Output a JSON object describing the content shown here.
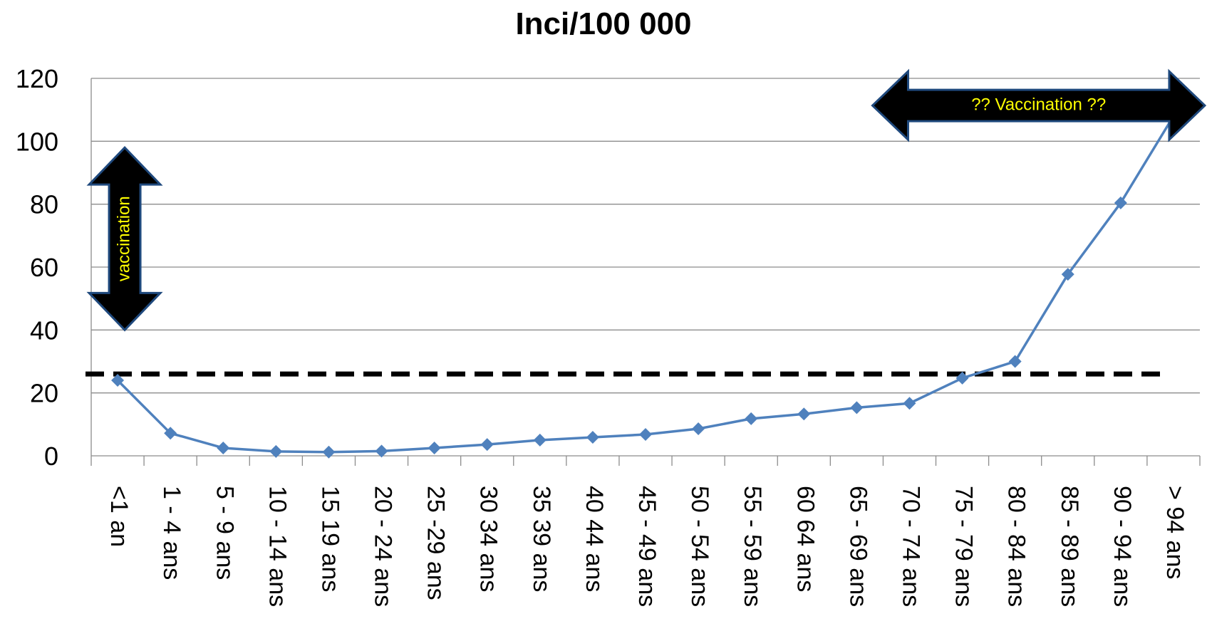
{
  "chart_data": {
    "type": "line",
    "title": "Inci/100 000",
    "xlabel": "",
    "ylabel": "",
    "ylim": [
      0,
      120
    ],
    "yticks": [
      0,
      20,
      40,
      60,
      80,
      100,
      120
    ],
    "grid": "horizontal",
    "categories": [
      "<1 an",
      "1 - 4 ans",
      "5 - 9 ans",
      "10 - 14 ans",
      "15 19 ans",
      "20 - 24 ans",
      "25 -29 ans",
      "30 34 ans",
      "35 39 ans",
      "40 44 ans",
      "45 - 49 ans",
      "50 - 54 ans",
      "55 - 59 ans",
      "60 64 ans",
      "65 - 69 ans",
      "70 - 74 ans",
      "75 - 79 ans",
      "80 - 84 ans",
      "85 - 89 ans",
      "90 - 94 ans",
      "> 94 ans"
    ],
    "series": [
      {
        "color": "#4f81bd",
        "values": [
          24,
          7.2,
          2.5,
          1.4,
          1.2,
          1.5,
          2.5,
          3.6,
          5,
          5.9,
          6.8,
          8.6,
          11.8,
          13.3,
          15.3,
          16.7,
          24.7,
          30,
          57.7,
          80.4,
          108
        ]
      }
    ],
    "reference_line": {
      "y": 26,
      "style": "dashed",
      "color": "#000000"
    },
    "annotations": [
      {
        "text": "vaccination",
        "type": "vertical-double-arrow",
        "y_range": [
          40,
          98
        ],
        "category_index": 0,
        "fill": "#000000",
        "border": "#1f497d",
        "text_color": "#ffff00"
      },
      {
        "text": "?? Vaccination ??",
        "type": "horizontal-double-arrow",
        "y_center": 110,
        "category_range": [
          15,
          20
        ],
        "fill": "#000000",
        "border": "#1f497d",
        "text_color": "#ffff00"
      }
    ]
  }
}
